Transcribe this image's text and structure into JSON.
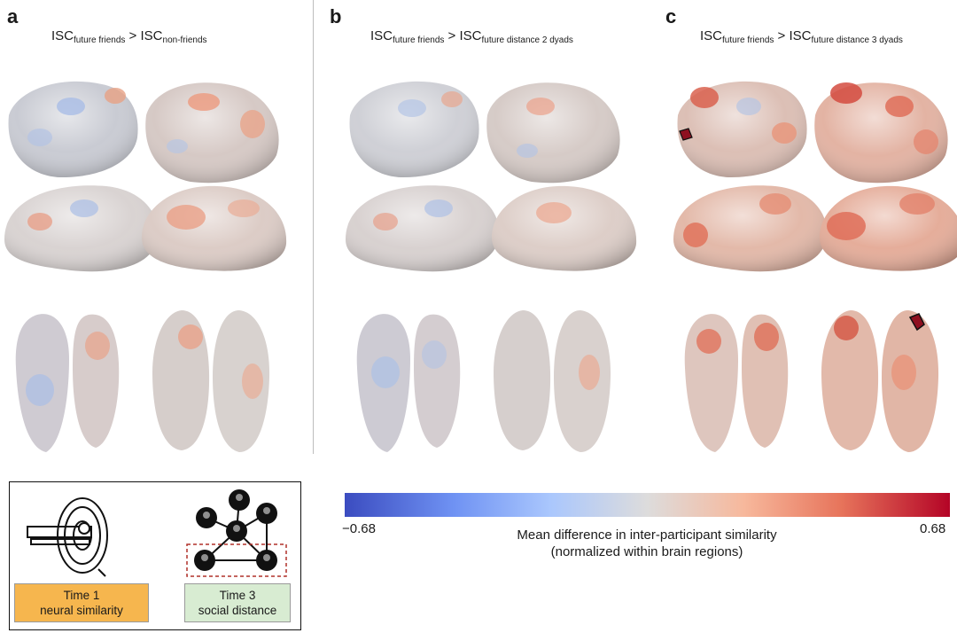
{
  "panels": [
    {
      "letter": "a",
      "isc_main": "ISC",
      "sub_left": "future friends",
      "gt": " > ",
      "isc_comp": "ISC",
      "sub_right": "non-friends"
    },
    {
      "letter": "b",
      "isc_main": "ISC",
      "sub_left": "future friends",
      "gt": " > ",
      "isc_comp": "ISC",
      "sub_right": "future distance 2 dyads"
    },
    {
      "letter": "c",
      "isc_main": "ISC",
      "sub_left": "future friends",
      "gt": " > ",
      "isc_comp": "ISC",
      "sub_right": "future distance 3 dyads"
    }
  ],
  "inset": {
    "time1_line1": "Time 1",
    "time1_line2": "neural similarity",
    "time3_line1": "Time 3",
    "time3_line2": "social distance"
  },
  "colorbar": {
    "min_label": "−0.68",
    "max_label": "0.68",
    "title_line1": "Mean difference in inter-participant similarity",
    "title_line2": "(normalized within brain regions)",
    "colors": {
      "low": "#3b4cc0",
      "mid": "#dddcdc",
      "high": "#b40426"
    }
  }
}
